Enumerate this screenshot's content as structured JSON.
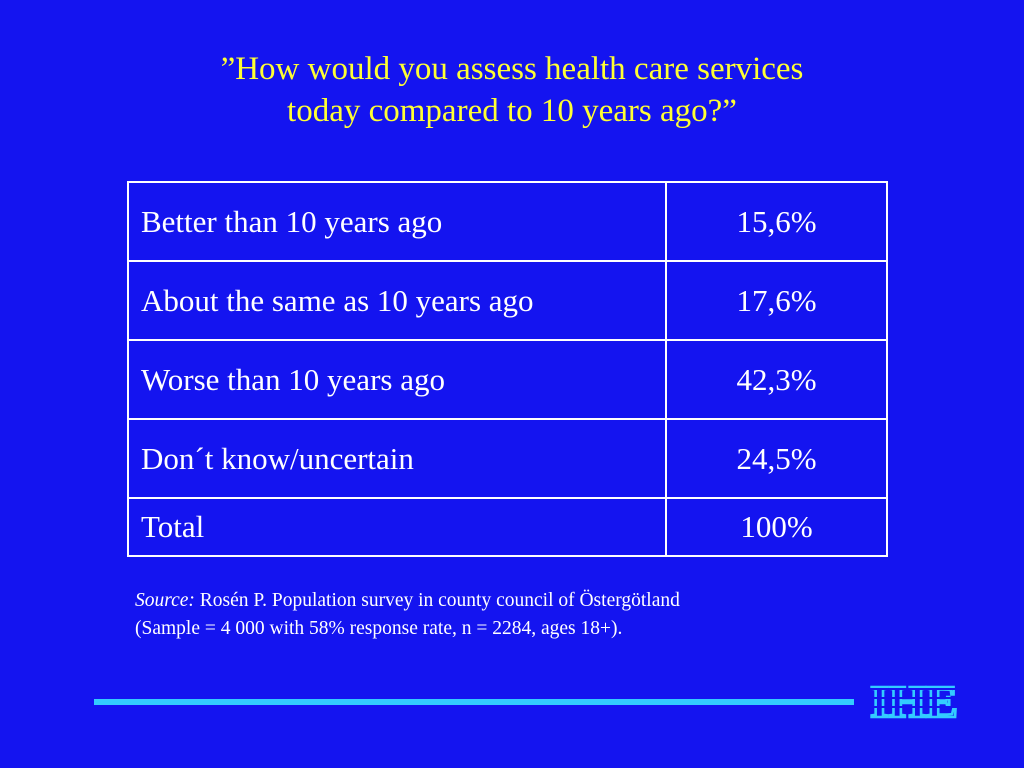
{
  "title": {
    "line1": "”How would you assess health care services",
    "line2": "today compared to 10 years ago?”"
  },
  "table": {
    "rows": [
      {
        "label": "Better than 10 years ago",
        "value": "15,6%"
      },
      {
        "label": "About the same as 10 years ago",
        "value": "17,6%"
      },
      {
        "label": "Worse than 10 years ago",
        "value": "42,3%"
      },
      {
        "label": "Don´t know/uncertain",
        "value": "24,5%"
      },
      {
        "label": "Total",
        "value": "100%"
      }
    ]
  },
  "source": {
    "prefix": "Source:",
    "line1": " Rosén P. Population survey in county council of Östergötland",
    "line2": "(Sample = 4 000 with 58% response rate, n = 2284, ages 18+)."
  },
  "logo": {
    "text": "IHE"
  },
  "colors": {
    "background": "#1414f0",
    "title": "#ffff33",
    "text": "#ffffff",
    "accent": "#33ccff"
  }
}
